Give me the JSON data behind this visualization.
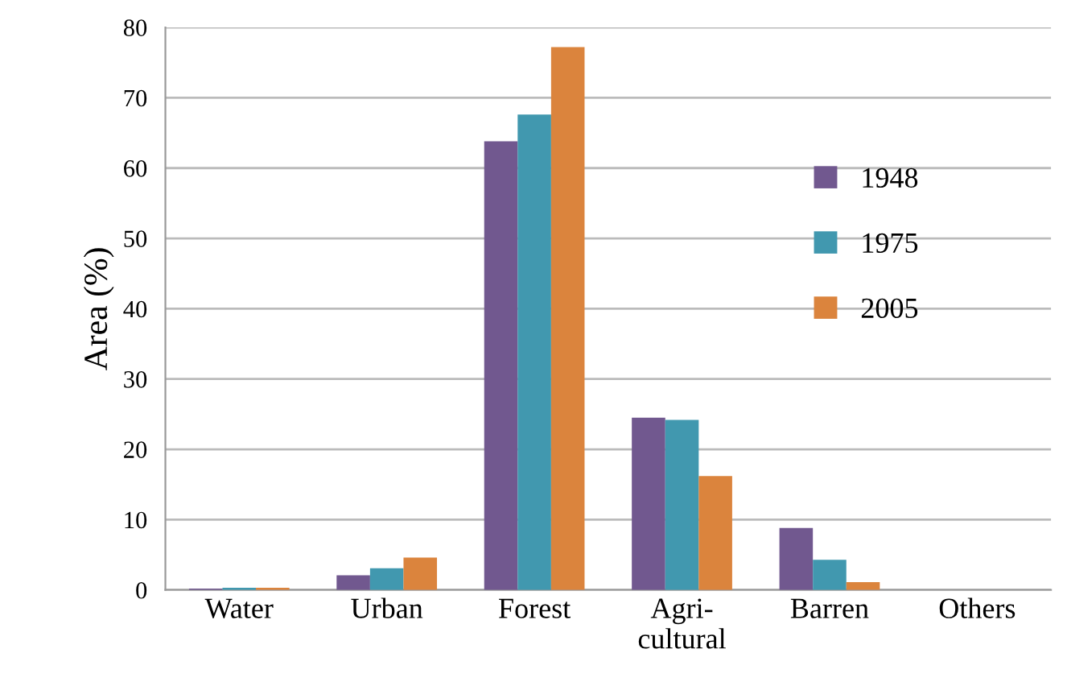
{
  "chart_data": {
    "type": "bar",
    "ylabel": "Area (%)",
    "categories": [
      "Water",
      "Urban",
      "Forest",
      "Agri-\ncultural",
      "Barren",
      "Others"
    ],
    "series": [
      {
        "name": "1948",
        "color": "#71588f",
        "values": [
          0.2,
          2.1,
          63.8,
          24.5,
          8.8,
          0
        ]
      },
      {
        "name": "1975",
        "color": "#4198af",
        "values": [
          0.3,
          3.1,
          67.6,
          24.2,
          4.3,
          0
        ]
      },
      {
        "name": "2005",
        "color": "#db843d",
        "values": [
          0.3,
          4.6,
          77.2,
          16.2,
          1.1,
          0
        ]
      }
    ],
    "ylim": [
      0,
      80
    ],
    "yticks": [
      0,
      10,
      20,
      30,
      40,
      50,
      60,
      70,
      80
    ],
    "grid": "y",
    "legend": "top right"
  }
}
